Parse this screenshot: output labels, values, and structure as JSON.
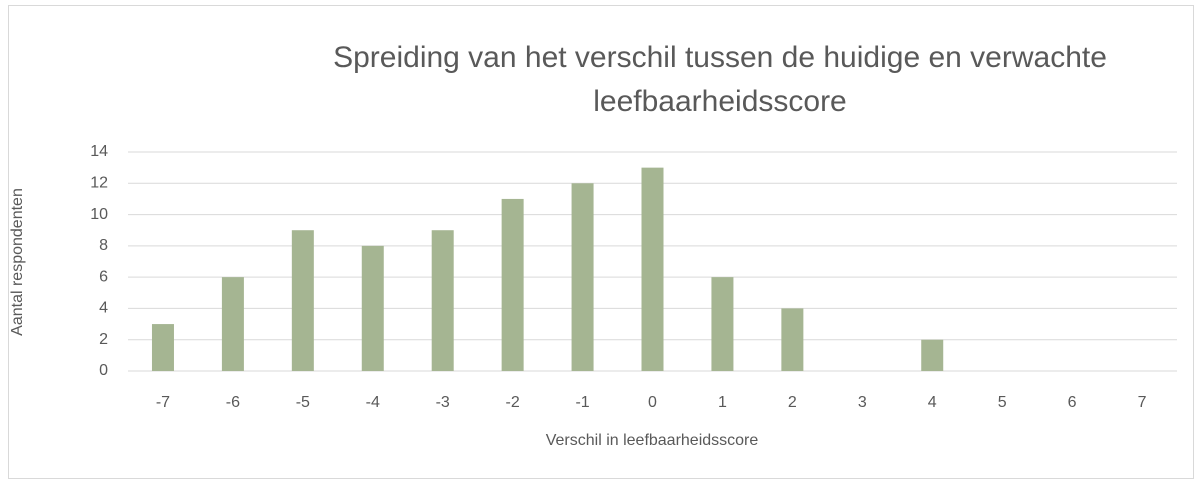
{
  "chart_data": {
    "type": "bar",
    "title": "Spreiding van het verschil tussen de huidige en verwachte leefbaarheidsscore",
    "x_label": "Verschil in leefbaarheidsscore",
    "y_label": "Aantal respondenten",
    "categories": [
      "-7",
      "-6",
      "-5",
      "-4",
      "-3",
      "-2",
      "-1",
      "0",
      "1",
      "2",
      "3",
      "4",
      "5",
      "6",
      "7"
    ],
    "values": [
      3,
      6,
      9,
      8,
      9,
      11,
      12,
      13,
      6,
      4,
      0,
      2,
      0,
      0,
      0
    ],
    "color": "#a5b592",
    "ylim": [
      0,
      14
    ],
    "yticks": [
      0,
      2,
      4,
      6,
      8,
      10,
      12,
      14
    ],
    "grid": true
  }
}
